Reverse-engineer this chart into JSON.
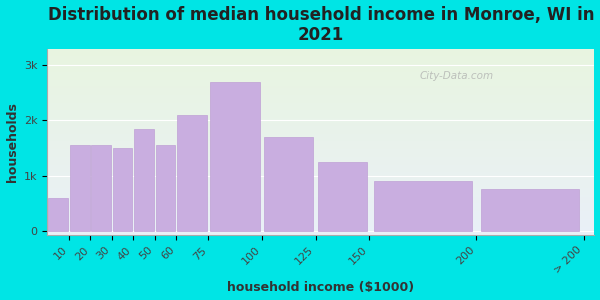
{
  "title": "Distribution of median household income in Monroe, WI in\n2021",
  "xlabel": "household income ($1000)",
  "ylabel": "households",
  "bar_lefts": [
    0,
    10,
    20,
    30,
    40,
    50,
    60,
    75,
    100,
    125,
    150,
    200
  ],
  "bar_rights": [
    10,
    20,
    30,
    40,
    50,
    60,
    75,
    100,
    125,
    150,
    200,
    250
  ],
  "bar_values": [
    600,
    1550,
    1550,
    1500,
    1850,
    1550,
    2100,
    2700,
    1700,
    1250,
    900,
    750
  ],
  "xtick_positions": [
    10,
    20,
    30,
    40,
    50,
    60,
    75,
    100,
    125,
    150,
    200,
    250
  ],
  "xtick_labels": [
    "10",
    "20",
    "30",
    "40",
    "50",
    "60",
    "75",
    "100",
    "125",
    "150",
    "200",
    "> 200"
  ],
  "bar_color": "#c9aee0",
  "bar_edge_color": "#bfa0d5",
  "yticks": [
    0,
    1000,
    2000,
    3000
  ],
  "ytick_labels": [
    "0",
    "1k",
    "2k",
    "3k"
  ],
  "ylim": [
    -80,
    3300
  ],
  "xlim": [
    0,
    255
  ],
  "bg_color": "#00e5e5",
  "plot_bg_color_top": "#e8f5e0",
  "plot_bg_color_bottom": "#eaf0f8",
  "title_fontsize": 12,
  "axis_label_fontsize": 9,
  "tick_fontsize": 8,
  "watermark": "City-Data.com"
}
